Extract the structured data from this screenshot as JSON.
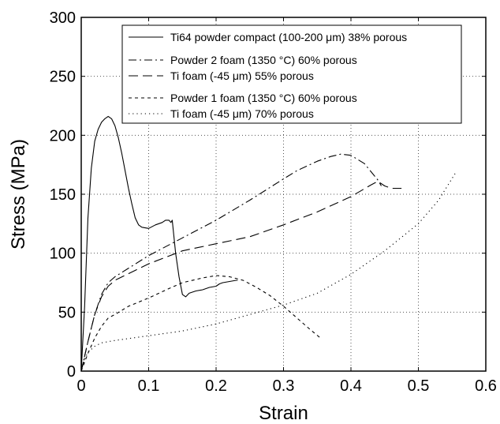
{
  "chart_data": {
    "type": "line",
    "xlabel": "Strain",
    "ylabel": "Stress (MPa)",
    "xlim": [
      0,
      0.6
    ],
    "ylim": [
      0,
      300
    ],
    "grid": true,
    "legend_placement": "top-right",
    "x_ticks": [
      "0",
      "0.1",
      "0.2",
      "0.3",
      "0.4",
      "0.5",
      "0.6"
    ],
    "y_ticks": [
      "0",
      "50",
      "100",
      "150",
      "200",
      "250",
      "300"
    ],
    "series": [
      {
        "name": "Ti64 powder compact (100-200 μm) 38% porous",
        "style": "solid",
        "x": [
          0,
          0.005,
          0.01,
          0.015,
          0.02,
          0.025,
          0.03,
          0.035,
          0.04,
          0.045,
          0.05,
          0.055,
          0.06,
          0.065,
          0.07,
          0.075,
          0.08,
          0.085,
          0.09,
          0.1,
          0.11,
          0.12,
          0.125,
          0.13,
          0.133,
          0.135,
          0.14,
          0.145,
          0.15,
          0.155,
          0.16,
          0.17,
          0.18,
          0.19,
          0.2,
          0.205,
          0.21,
          0.22,
          0.23,
          0.232
        ],
        "y": [
          0,
          55,
          130,
          172,
          195,
          205,
          211,
          214,
          216,
          214,
          208,
          198,
          185,
          170,
          155,
          142,
          130,
          124,
          122,
          121,
          124,
          126,
          128,
          128,
          126,
          128,
          100,
          80,
          65,
          63,
          66,
          68,
          69,
          71,
          72,
          74,
          75,
          76,
          77,
          77
        ]
      },
      {
        "name": "Powder 2 foam (1350 °C) 60% porous",
        "style": "dashdot",
        "x": [
          0,
          0.01,
          0.02,
          0.03,
          0.04,
          0.05,
          0.1,
          0.15,
          0.2,
          0.25,
          0.3,
          0.32,
          0.35,
          0.37,
          0.385,
          0.4,
          0.42,
          0.43,
          0.44,
          0.445
        ],
        "y": [
          0,
          25,
          48,
          65,
          75,
          80,
          98,
          113,
          128,
          145,
          163,
          170,
          178,
          182,
          184,
          183,
          176,
          169,
          162,
          157
        ]
      },
      {
        "name": "Ti foam (-45 μm) 55% porous",
        "style": "dashed",
        "x": [
          0,
          0.01,
          0.02,
          0.03,
          0.04,
          0.05,
          0.1,
          0.15,
          0.2,
          0.25,
          0.3,
          0.35,
          0.4,
          0.43,
          0.44,
          0.45,
          0.46,
          0.47,
          0.475
        ],
        "y": [
          0,
          25,
          48,
          63,
          72,
          77,
          91,
          102,
          108,
          114,
          124,
          135,
          148,
          158,
          161,
          157,
          155,
          155,
          155
        ]
      },
      {
        "name": "Powder 1 foam (1350 °C) 60% porous",
        "style": "shortdash",
        "x": [
          0,
          0.01,
          0.02,
          0.03,
          0.04,
          0.05,
          0.07,
          0.1,
          0.13,
          0.15,
          0.18,
          0.2,
          0.22,
          0.24,
          0.26,
          0.28,
          0.3,
          0.32,
          0.34,
          0.355
        ],
        "y": [
          0,
          15,
          28,
          38,
          45,
          48,
          55,
          62,
          70,
          75,
          79,
          81,
          80,
          77,
          71,
          64,
          55,
          45,
          35,
          28
        ]
      },
      {
        "name": "Ti foam (-45 μm) 70% porous",
        "style": "dotted",
        "x": [
          0,
          0.005,
          0.01,
          0.02,
          0.03,
          0.05,
          0.1,
          0.15,
          0.2,
          0.25,
          0.3,
          0.35,
          0.4,
          0.45,
          0.5,
          0.53,
          0.555
        ],
        "y": [
          0,
          10,
          16,
          21,
          24,
          26,
          30,
          34,
          40,
          48,
          56,
          66,
          82,
          102,
          125,
          145,
          168
        ]
      }
    ]
  }
}
